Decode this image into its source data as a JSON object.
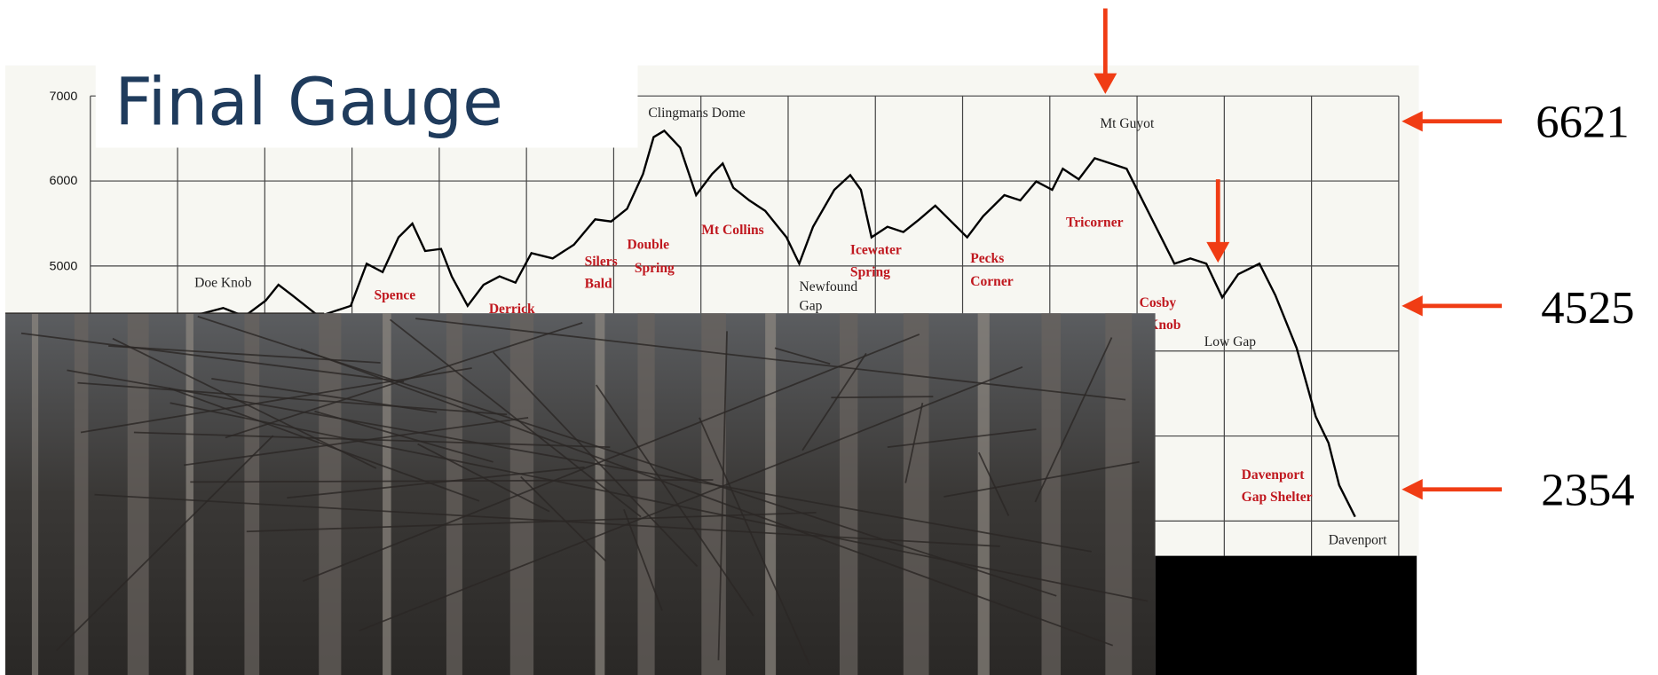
{
  "slide": {
    "title": "Final Gauge",
    "profile": {
      "y_labels": [
        "7000",
        "6000",
        "5000"
      ],
      "places": [
        "Clingmans Dome",
        "Mt Guyot",
        "Doe Knob",
        "Newfound",
        "Gap",
        "Low Gap",
        "Davenport"
      ],
      "shelters": [
        "Spence",
        "Derrick",
        "Silers",
        "Bald",
        "Double",
        "Spring",
        "Mt Collins",
        "Icewater",
        "Spring",
        "Pecks",
        "Corner",
        "Tricorner",
        "Cosby",
        "Knob",
        "Davenport",
        "Gap Shelter"
      ]
    },
    "elevations": [
      "6621",
      "4525",
      "2354"
    ]
  }
}
